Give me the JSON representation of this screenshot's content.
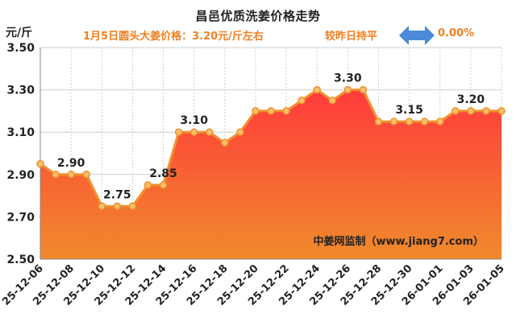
{
  "header": {
    "title": "昌邑优质洗姜价格走势",
    "subtitle": "1月5日圆头大姜价格：3.20元/斤左右",
    "compare_label": "较昨日持平",
    "change": "0.00%",
    "unit": "元/斤"
  },
  "watermark": "中姜网监制（www.jiang7.com）",
  "colors": {
    "line": "#f0902c",
    "marker_fill": "#f6c06a",
    "area_top": "#ff3b3b",
    "area_bottom": "#f08a2c",
    "accent": "#f07f20",
    "arrow": "#4a8ad8"
  },
  "chart_data": {
    "type": "area",
    "title": "昌邑优质洗姜价格走势",
    "ylabel": "元/斤",
    "ylim": [
      2.5,
      3.5
    ],
    "yticks": [
      "2.50",
      "2.70",
      "2.90",
      "3.10",
      "3.30",
      "3.50"
    ],
    "grid": true,
    "x": [
      "25-12-06",
      "25-12-07",
      "25-12-08",
      "25-12-09",
      "25-12-10",
      "25-12-11",
      "25-12-12",
      "25-12-13",
      "25-12-14",
      "25-12-15",
      "25-12-16",
      "25-12-17",
      "25-12-18",
      "25-12-19",
      "25-12-20",
      "25-12-21",
      "25-12-22",
      "25-12-23",
      "25-12-24",
      "25-12-25",
      "25-12-26",
      "25-12-27",
      "25-12-28",
      "25-12-29",
      "25-12-30",
      "25-12-31",
      "26-01-01",
      "26-01-02",
      "26-01-03",
      "26-01-04",
      "26-01-05"
    ],
    "values": [
      2.95,
      2.9,
      2.9,
      2.9,
      2.75,
      2.75,
      2.75,
      2.85,
      2.85,
      3.1,
      3.1,
      3.1,
      3.05,
      3.1,
      3.2,
      3.2,
      3.2,
      3.25,
      3.3,
      3.25,
      3.3,
      3.3,
      3.15,
      3.15,
      3.15,
      3.15,
      3.15,
      3.2,
      3.2,
      3.2,
      3.2
    ],
    "xticks": [
      "25-12-06",
      "25-12-08",
      "25-12-10",
      "25-12-12",
      "25-12-14",
      "25-12-16",
      "25-12-18",
      "25-12-20",
      "25-12-22",
      "25-12-24",
      "25-12-26",
      "25-12-28",
      "25-12-30",
      "26-01-01",
      "26-01-03",
      "26-01-05"
    ],
    "annotations": [
      {
        "index": 2,
        "text": "2.90"
      },
      {
        "index": 5,
        "text": "2.75"
      },
      {
        "index": 8,
        "text": "2.85"
      },
      {
        "index": 10,
        "text": "3.10"
      },
      {
        "index": 20,
        "text": "3.30"
      },
      {
        "index": 24,
        "text": "3.15"
      },
      {
        "index": 28,
        "text": "3.20"
      }
    ]
  }
}
